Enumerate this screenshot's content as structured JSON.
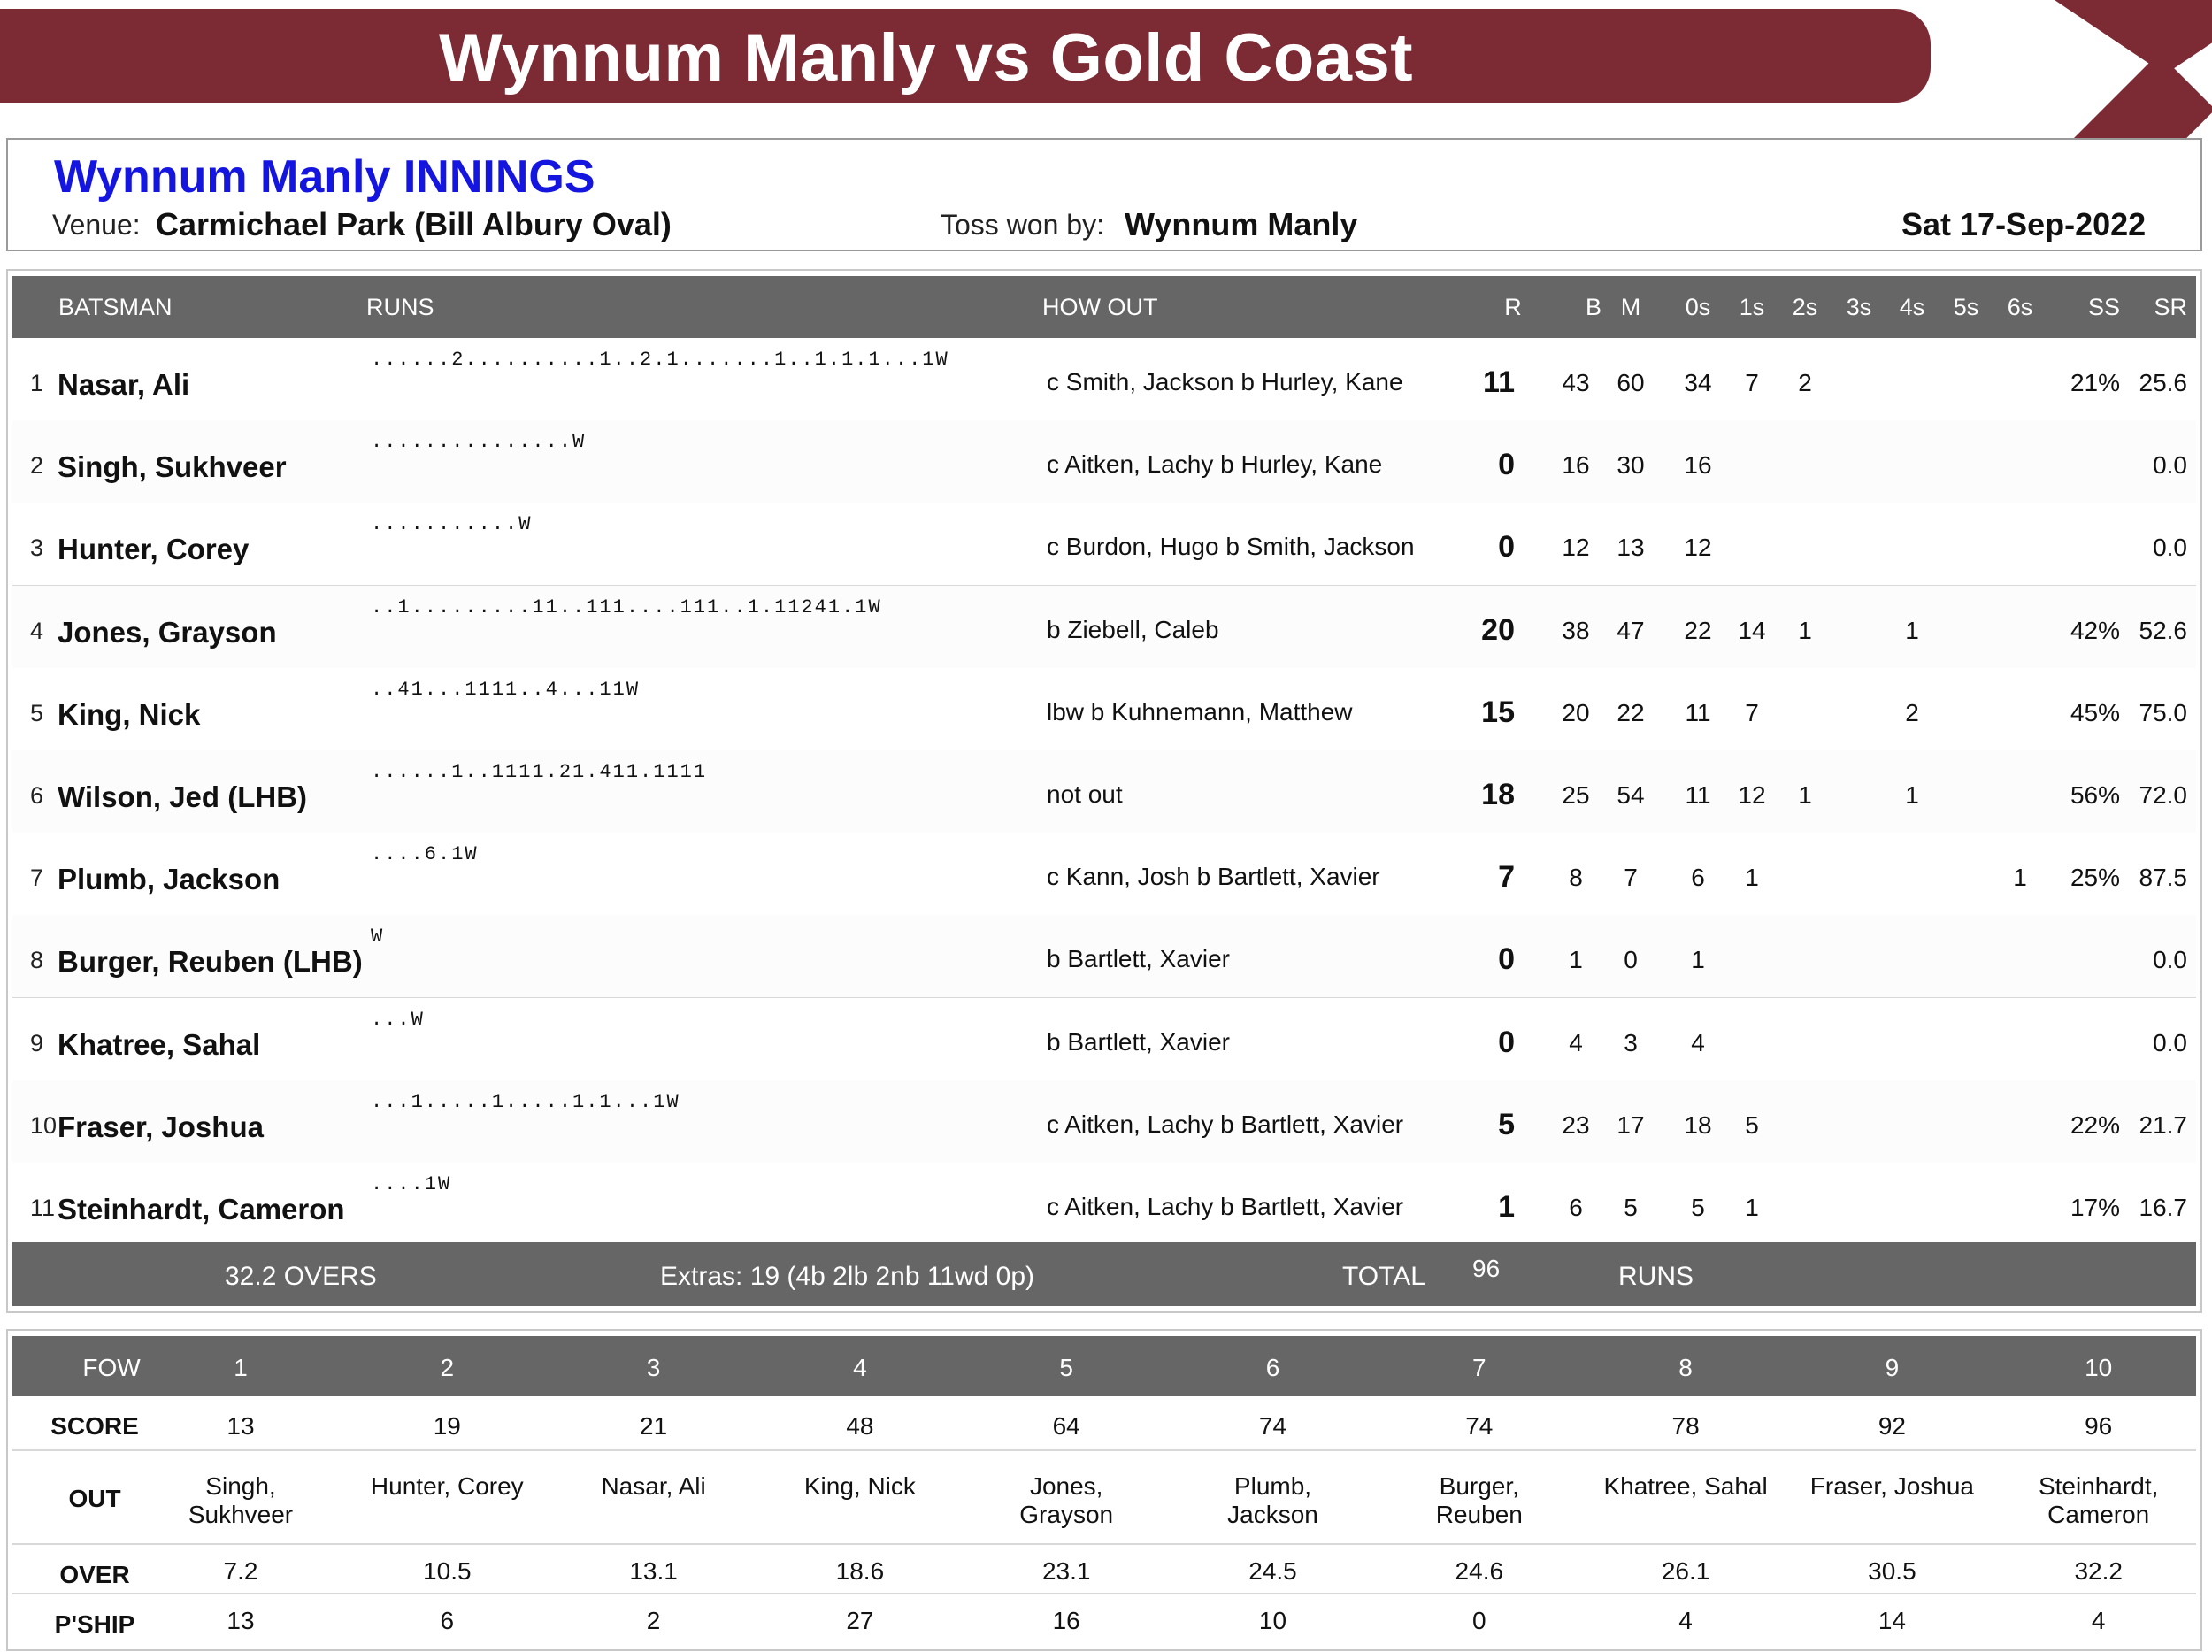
{
  "header": {
    "title": "Wynnum Manly vs Gold Coast"
  },
  "info": {
    "innings_title": "Wynnum Manly INNINGS",
    "venue_label": "Venue:",
    "venue": "Carmichael Park (Bill Albury Oval)",
    "toss_label": "Toss won by:",
    "toss": "Wynnum Manly",
    "date": "Sat 17-Sep-2022"
  },
  "colors": {
    "banner": "#7c2a33",
    "innings_title": "#1515e0",
    "header_bar": "#666666"
  },
  "batting": {
    "headers": {
      "batsman": "BATSMAN",
      "runs": "RUNS",
      "how_out": "HOW OUT",
      "r": "R",
      "b": "B",
      "m": "M",
      "s0": "0s",
      "s1": "1s",
      "s2": "2s",
      "s3": "3s",
      "s4": "4s",
      "s5": "5s",
      "s6": "6s",
      "ss": "SS",
      "sr": "SR"
    },
    "rows": [
      {
        "num": "1",
        "name": "Nasar, Ali",
        "runs_seq": "......2..........1..2.1.......1..1.1.1...1W",
        "how_out": "c Smith, Jackson  b Hurley, Kane",
        "r": "11",
        "b": "43",
        "m": "60",
        "s0": "34",
        "s1": "7",
        "s2": "2",
        "s3": "",
        "s4": "",
        "s5": "",
        "s6": "",
        "ss": "21%",
        "sr": "25.6"
      },
      {
        "num": "2",
        "name": "Singh, Sukhveer",
        "runs_seq": "...............W",
        "how_out": "c Aitken, Lachy  b Hurley, Kane",
        "r": "0",
        "b": "16",
        "m": "30",
        "s0": "16",
        "s1": "",
        "s2": "",
        "s3": "",
        "s4": "",
        "s5": "",
        "s6": "",
        "ss": "",
        "sr": "0.0"
      },
      {
        "num": "3",
        "name": "Hunter, Corey",
        "runs_seq": "...........W",
        "how_out": "c Burdon, Hugo  b Smith, Jackson",
        "r": "0",
        "b": "12",
        "m": "13",
        "s0": "12",
        "s1": "",
        "s2": "",
        "s3": "",
        "s4": "",
        "s5": "",
        "s6": "",
        "ss": "",
        "sr": "0.0"
      },
      {
        "num": "4",
        "name": "Jones, Grayson",
        "runs_seq": "..1.........11..111....111..1.11241.1W",
        "how_out": "b Ziebell, Caleb",
        "r": "20",
        "b": "38",
        "m": "47",
        "s0": "22",
        "s1": "14",
        "s2": "1",
        "s3": "",
        "s4": "1",
        "s5": "",
        "s6": "",
        "ss": "42%",
        "sr": "52.6"
      },
      {
        "num": "5",
        "name": "King, Nick",
        "runs_seq": "..41...1111..4...11W",
        "how_out": "lbw  b Kuhnemann, Matthew",
        "r": "15",
        "b": "20",
        "m": "22",
        "s0": "11",
        "s1": "7",
        "s2": "",
        "s3": "",
        "s4": "2",
        "s5": "",
        "s6": "",
        "ss": "45%",
        "sr": "75.0"
      },
      {
        "num": "6",
        "name": "Wilson, Jed (LHB)",
        "runs_seq": "......1..1111.21.411.1111",
        "how_out": "not out",
        "r": "18",
        "b": "25",
        "m": "54",
        "s0": "11",
        "s1": "12",
        "s2": "1",
        "s3": "",
        "s4": "1",
        "s5": "",
        "s6": "",
        "ss": "56%",
        "sr": "72.0"
      },
      {
        "num": "7",
        "name": "Plumb, Jackson",
        "runs_seq": "....6.1W",
        "how_out": "c Kann, Josh  b Bartlett, Xavier",
        "r": "7",
        "b": "8",
        "m": "7",
        "s0": "6",
        "s1": "1",
        "s2": "",
        "s3": "",
        "s4": "",
        "s5": "",
        "s6": "1",
        "ss": "25%",
        "sr": "87.5"
      },
      {
        "num": "8",
        "name": "Burger, Reuben (LHB)",
        "runs_seq": "W",
        "how_out": "b Bartlett, Xavier",
        "r": "0",
        "b": "1",
        "m": "0",
        "s0": "1",
        "s1": "",
        "s2": "",
        "s3": "",
        "s4": "",
        "s5": "",
        "s6": "",
        "ss": "",
        "sr": "0.0"
      },
      {
        "num": "9",
        "name": "Khatree, Sahal",
        "runs_seq": "...W",
        "how_out": "b Bartlett, Xavier",
        "r": "0",
        "b": "4",
        "m": "3",
        "s0": "4",
        "s1": "",
        "s2": "",
        "s3": "",
        "s4": "",
        "s5": "",
        "s6": "",
        "ss": "",
        "sr": "0.0"
      },
      {
        "num": "10",
        "name": "Fraser, Joshua",
        "runs_seq": "...1.....1.....1.1...1W",
        "how_out": "c Aitken, Lachy  b Bartlett, Xavier",
        "r": "5",
        "b": "23",
        "m": "17",
        "s0": "18",
        "s1": "5",
        "s2": "",
        "s3": "",
        "s4": "",
        "s5": "",
        "s6": "",
        "ss": "22%",
        "sr": "21.7"
      },
      {
        "num": "11",
        "name": "Steinhardt, Cameron",
        "runs_seq": "....1W",
        "how_out": "c Aitken, Lachy  b Bartlett, Xavier",
        "r": "1",
        "b": "6",
        "m": "5",
        "s0": "5",
        "s1": "1",
        "s2": "",
        "s3": "",
        "s4": "",
        "s5": "",
        "s6": "",
        "ss": "17%",
        "sr": "16.7"
      }
    ],
    "totals": {
      "overs": "32.2 OVERS",
      "extras": "Extras: 19 (4b  2lb  2nb  11wd  0p)",
      "total_label": "TOTAL",
      "total": "96",
      "runs_label": "RUNS"
    }
  },
  "fow": {
    "title": "FOW",
    "wickets": [
      "1",
      "2",
      "3",
      "4",
      "5",
      "6",
      "7",
      "8",
      "9",
      "10"
    ],
    "score_label": "SCORE",
    "scores": [
      "13",
      "19",
      "21",
      "48",
      "64",
      "74",
      "74",
      "78",
      "92",
      "96"
    ],
    "out_label": "OUT",
    "out": [
      "Singh, Sukhveer",
      "Hunter, Corey",
      "Nasar, Ali",
      "King, Nick",
      "Jones, Grayson",
      "Plumb, Jackson",
      "Burger, Reuben",
      "Khatree, Sahal",
      "Fraser, Joshua",
      "Steinhardt, Cameron"
    ],
    "over_label": "OVER",
    "overs": [
      "7.2",
      "10.5",
      "13.1",
      "18.6",
      "23.1",
      "24.5",
      "24.6",
      "26.1",
      "30.5",
      "32.2"
    ],
    "pship_label": "P'SHIP",
    "partnerships": [
      "13",
      "6",
      "2",
      "27",
      "16",
      "10",
      "0",
      "4",
      "14",
      "4"
    ]
  }
}
